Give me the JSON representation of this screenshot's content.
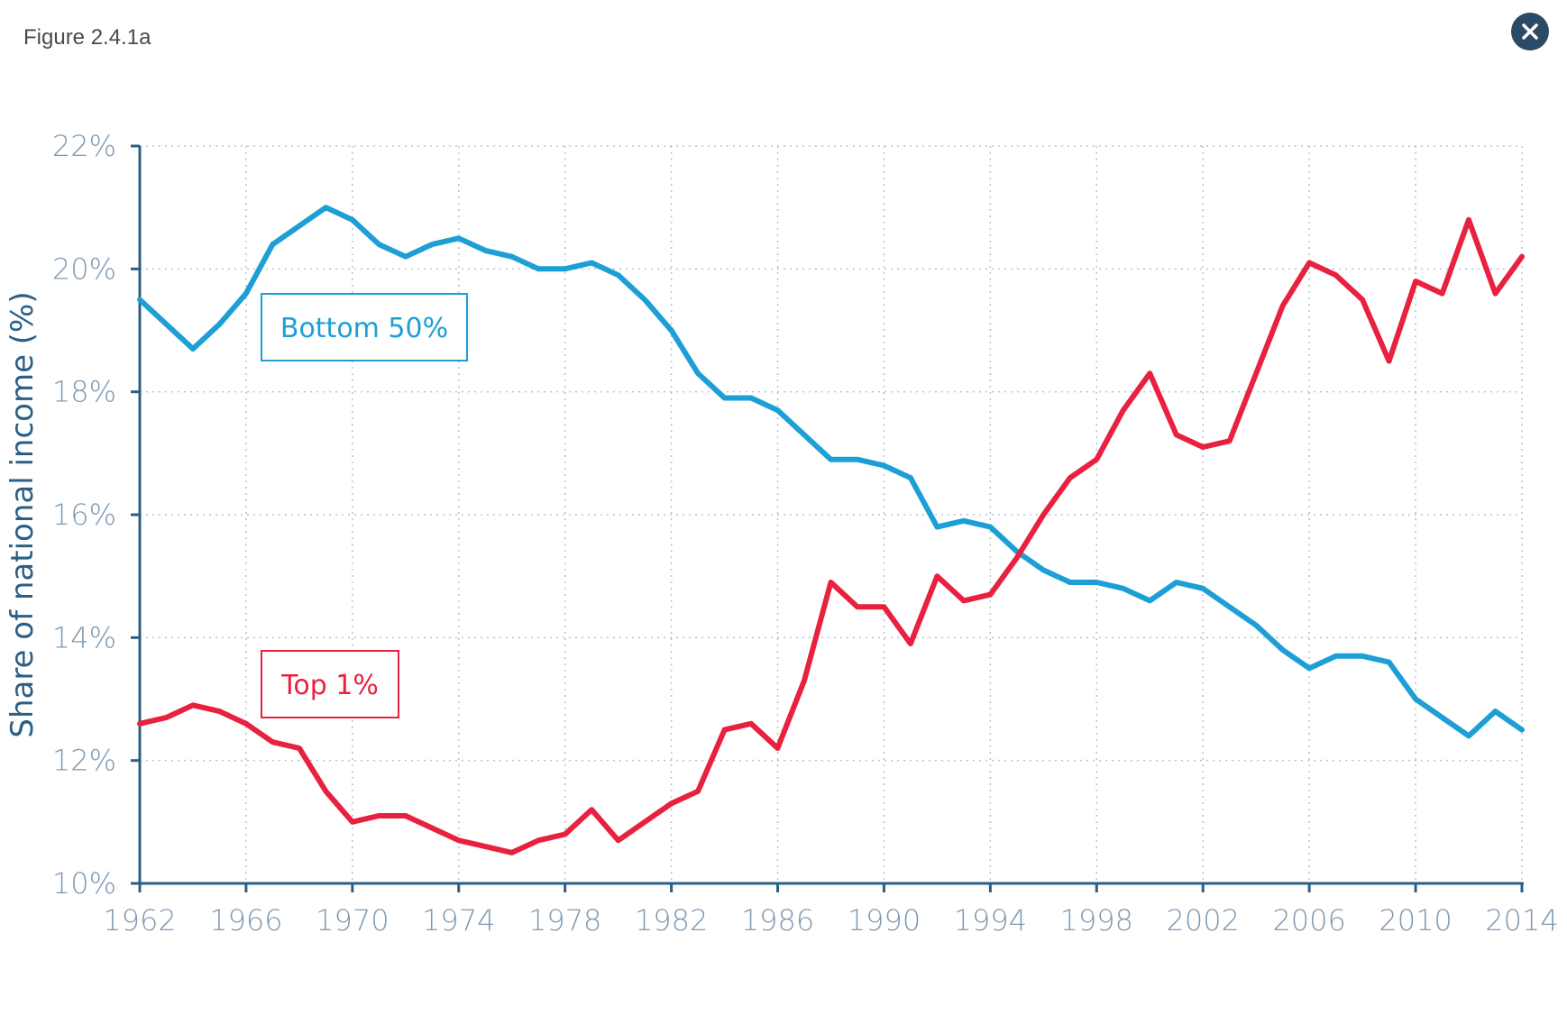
{
  "figure_label": "Figure 2.4.1a",
  "close_icon": "close-icon",
  "colors": {
    "bottom50": "#1d9fd6",
    "top1": "#e8213f",
    "axis": "#2b5f86",
    "tick_text": "#7d9ab3",
    "grid": "#b7c3cf"
  },
  "chart_data": {
    "type": "line",
    "title": "",
    "xlabel": "",
    "ylabel": "Share of national income (%)",
    "xlim": [
      1962,
      2014
    ],
    "ylim": [
      10,
      22
    ],
    "x_ticks": [
      1962,
      1966,
      1970,
      1974,
      1978,
      1982,
      1986,
      1990,
      1994,
      1998,
      2002,
      2006,
      2010,
      2014
    ],
    "x_tick_labels": [
      "1962",
      "1966",
      "1970",
      "1974",
      "1978",
      "1982",
      "1986",
      "1990",
      "1994",
      "1998",
      "2002",
      "2006",
      "2010",
      "2014"
    ],
    "y_ticks": [
      10,
      12,
      14,
      16,
      18,
      20,
      22
    ],
    "y_tick_labels": [
      "10%",
      "12%",
      "14%",
      "16%",
      "18%",
      "20%",
      "22%"
    ],
    "grid": true,
    "series": [
      {
        "name": "Bottom 50%",
        "color": "#1d9fd6",
        "x": [
          1962,
          1964,
          1965,
          1966,
          1967,
          1969,
          1970,
          1971,
          1972,
          1973,
          1974,
          1975,
          1976,
          1977,
          1978,
          1979,
          1980,
          1981,
          1982,
          1983,
          1984,
          1985,
          1986,
          1987,
          1988,
          1989,
          1990,
          1991,
          1992,
          1993,
          1994,
          1995,
          1996,
          1997,
          1998,
          1999,
          2000,
          2001,
          2002,
          2003,
          2004,
          2005,
          2006,
          2007,
          2008,
          2009,
          2010,
          2011,
          2012,
          2013,
          2014
        ],
        "values": [
          19.5,
          18.7,
          19.1,
          19.6,
          20.4,
          21.0,
          20.8,
          20.4,
          20.2,
          20.4,
          20.5,
          20.3,
          20.2,
          20.0,
          20.0,
          20.1,
          19.9,
          19.5,
          19.0,
          18.3,
          17.9,
          17.9,
          17.7,
          17.3,
          16.9,
          16.9,
          16.8,
          16.6,
          15.8,
          15.9,
          15.8,
          15.4,
          15.1,
          14.9,
          14.9,
          14.8,
          14.6,
          14.9,
          14.8,
          14.5,
          14.2,
          13.8,
          13.5,
          13.7,
          13.7,
          13.6,
          13.0,
          12.7,
          12.4,
          12.8,
          12.5
        ]
      },
      {
        "name": "Top 1%",
        "color": "#e8213f",
        "x": [
          1962,
          1963,
          1964,
          1965,
          1966,
          1967,
          1968,
          1969,
          1970,
          1971,
          1972,
          1973,
          1974,
          1975,
          1976,
          1977,
          1978,
          1979,
          1980,
          1981,
          1982,
          1983,
          1984,
          1985,
          1986,
          1987,
          1988,
          1989,
          1990,
          1991,
          1992,
          1993,
          1994,
          1995,
          1996,
          1997,
          1998,
          1999,
          2000,
          2001,
          2002,
          2003,
          2004,
          2005,
          2006,
          2007,
          2008,
          2009,
          2010,
          2011,
          2012,
          2013,
          2014
        ],
        "values": [
          12.6,
          12.7,
          12.9,
          12.8,
          12.6,
          12.3,
          12.2,
          11.5,
          11.0,
          11.1,
          11.1,
          10.9,
          10.7,
          10.6,
          10.5,
          10.7,
          10.8,
          11.2,
          10.7,
          11.0,
          11.3,
          11.5,
          12.5,
          12.6,
          12.2,
          13.3,
          14.9,
          14.5,
          14.5,
          13.9,
          15.0,
          14.6,
          14.7,
          15.3,
          16.0,
          16.6,
          16.9,
          17.7,
          18.3,
          17.3,
          17.1,
          17.2,
          18.3,
          19.4,
          20.1,
          19.9,
          19.5,
          18.5,
          19.8,
          19.6,
          20.8,
          19.6,
          20.2
        ]
      }
    ],
    "annotations": [
      "Bottom 50%",
      "Top 1%"
    ]
  }
}
